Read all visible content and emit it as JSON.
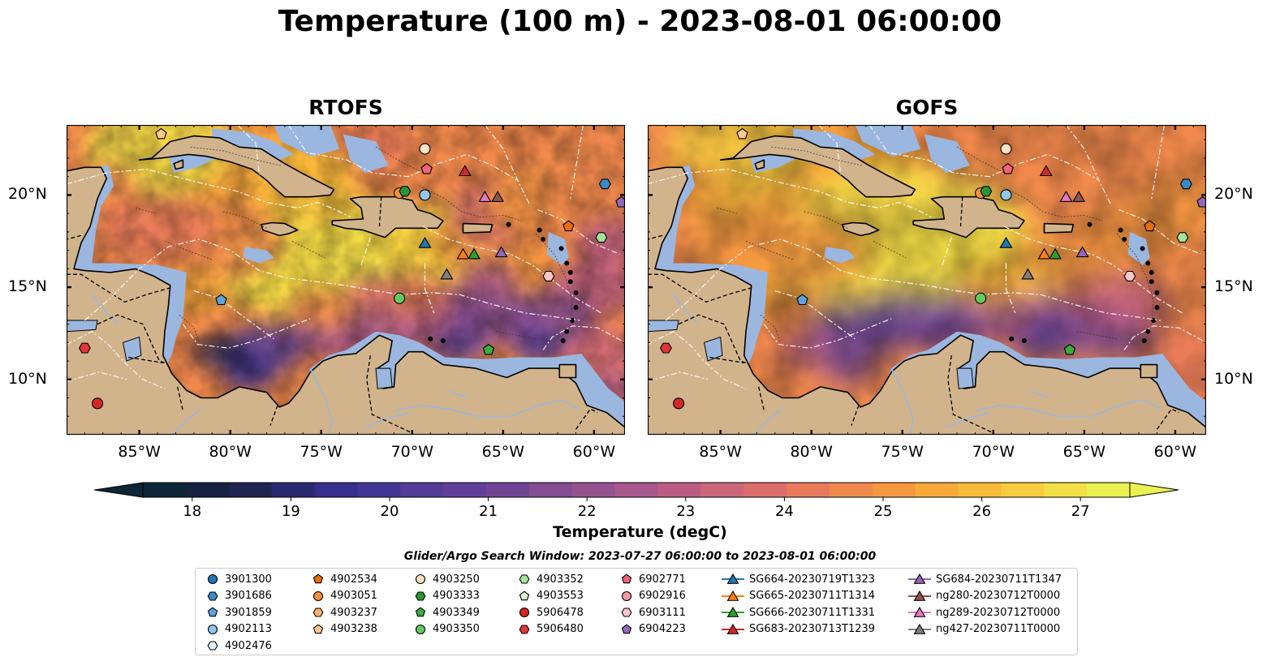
{
  "title": "Temperature (100 m) - 2023-08-01 06:00:00",
  "panels": [
    {
      "title": "RTOFS",
      "style": "rtofs"
    },
    {
      "title": "GOFS",
      "style": "gofs"
    }
  ],
  "axes": {
    "lon_ticks": [
      "85°W",
      "80°W",
      "75°W",
      "70°W",
      "65°W",
      "60°W"
    ],
    "lon_values": [
      -85,
      -80,
      -75,
      -70,
      -65,
      -60
    ],
    "lat_ticks": [
      "20°N",
      "15°N",
      "10°N"
    ],
    "lat_values": [
      20,
      15,
      10
    ],
    "lon_range": [
      -89,
      -58.3
    ],
    "lat_range": [
      7,
      23.8
    ]
  },
  "colorbar": {
    "label": "Temperature (degC)",
    "ticks": [
      "18",
      "19",
      "20",
      "21",
      "22",
      "23",
      "24",
      "25",
      "26",
      "27"
    ],
    "tick_values": [
      18,
      19,
      20,
      21,
      22,
      23,
      24,
      25,
      26,
      27
    ],
    "range": [
      17.5,
      27.5
    ],
    "colors": [
      "#0d2636",
      "#16213f",
      "#1e2350",
      "#2a2a6e",
      "#362f8c",
      "#433596",
      "#523c98",
      "#613f98",
      "#714596",
      "#834c93",
      "#955290",
      "#a8588a",
      "#bb5d83",
      "#cc6679",
      "#db6e6c",
      "#e97a5c",
      "#f1894c",
      "#f5983f",
      "#f8a93a",
      "#f9bb3a",
      "#f7cd3f",
      "#f2df47",
      "#ebf151"
    ]
  },
  "legend": {
    "title": "Glider/Argo Search Window: 2023-07-27 06:00:00 to 2023-08-01 06:00:00",
    "items": [
      {
        "label": "3901300",
        "marker": "circle",
        "color": "#1f77b4"
      },
      {
        "label": "3901686",
        "marker": "hexagon",
        "color": "#3a8ac8"
      },
      {
        "label": "3901859",
        "marker": "pentagon",
        "color": "#5ea3dc"
      },
      {
        "label": "4902113",
        "marker": "circle",
        "color": "#92c5ea"
      },
      {
        "label": "4902476",
        "marker": "hexagon",
        "color": "#e3f1fb"
      },
      {
        "label": "4902534",
        "marker": "pentagon",
        "color": "#e86d0b"
      },
      {
        "label": "4903051",
        "marker": "circle",
        "color": "#f7903a"
      },
      {
        "label": "4903237",
        "marker": "hexagon",
        "color": "#fbb26a"
      },
      {
        "label": "4903238",
        "marker": "pentagon",
        "color": "#fdc993"
      },
      {
        "label": "4903250",
        "marker": "circle",
        "color": "#fde1c4"
      },
      {
        "label": "4903333",
        "marker": "hexagon",
        "color": "#2a9531"
      },
      {
        "label": "4903349",
        "marker": "pentagon",
        "color": "#3bab3e"
      },
      {
        "label": "4903350",
        "marker": "circle",
        "color": "#67c862"
      },
      {
        "label": "4903352",
        "marker": "hexagon",
        "color": "#a5e29a"
      },
      {
        "label": "4903553",
        "marker": "pentagon",
        "color": "#d7f4cf"
      },
      {
        "label": "5906478",
        "marker": "circle",
        "color": "#d62728"
      },
      {
        "label": "5906480",
        "marker": "hexagon",
        "color": "#e0363d"
      },
      {
        "label": "6902771",
        "marker": "pentagon",
        "color": "#f06478"
      },
      {
        "label": "6902916",
        "marker": "circle",
        "color": "#f79a9e"
      },
      {
        "label": "6903111",
        "marker": "hexagon",
        "color": "#fbc6c8"
      },
      {
        "label": "6904223",
        "marker": "pentagon",
        "color": "#9467bd"
      },
      {
        "label": "SG664-20230719T1323",
        "marker": "triangle",
        "color": "#1f77b4"
      },
      {
        "label": "SG665-20230711T1314",
        "marker": "triangle",
        "color": "#ff7f0e"
      },
      {
        "label": "SG666-20230711T1331",
        "marker": "triangle",
        "color": "#2ca02c"
      },
      {
        "label": "SG683-20230713T1239",
        "marker": "triangle",
        "color": "#d62728"
      },
      {
        "label": "SG684-20230711T1347",
        "marker": "triangle",
        "color": "#9467bd"
      },
      {
        "label": "ng280-20230712T0000",
        "marker": "triangle",
        "color": "#8c564b"
      },
      {
        "label": "ng289-20230712T0000",
        "marker": "triangle",
        "color": "#e377c2"
      },
      {
        "label": "ng427-20230711T0000",
        "marker": "triangle",
        "color": "#7f7f7f"
      }
    ]
  },
  "observations": [
    {
      "id": "3901686",
      "lon": -59.4,
      "lat": 20.6
    },
    {
      "id": "3901859",
      "lon": -80.5,
      "lat": 14.3
    },
    {
      "id": "4902113",
      "lon": -69.3,
      "lat": 20.0
    },
    {
      "id": "4902534",
      "lon": -61.4,
      "lat": 18.3
    },
    {
      "id": "4903051",
      "lon": -70.7,
      "lat": 20.1
    },
    {
      "id": "4903238",
      "lon": -83.8,
      "lat": 23.3
    },
    {
      "id": "4903250",
      "lon": -69.3,
      "lat": 22.5
    },
    {
      "id": "4903333",
      "lon": -70.4,
      "lat": 20.2
    },
    {
      "id": "4903349",
      "lon": -65.8,
      "lat": 11.6
    },
    {
      "id": "4903350",
      "lon": -70.7,
      "lat": 14.4
    },
    {
      "id": "4903352",
      "lon": -59.6,
      "lat": 17.7
    },
    {
      "id": "5906478",
      "lon": -87.3,
      "lat": 8.7
    },
    {
      "id": "5906480",
      "lon": -88.0,
      "lat": 11.7
    },
    {
      "id": "6902771",
      "lon": -69.2,
      "lat": 21.4
    },
    {
      "id": "6903111",
      "lon": -62.5,
      "lat": 15.6
    },
    {
      "id": "6904223",
      "lon": -58.5,
      "lat": 19.6
    },
    {
      "id": "SG664-20230719T1323",
      "lon": -69.3,
      "lat": 17.4
    },
    {
      "id": "SG665-20230711T1314",
      "lon": -67.2,
      "lat": 16.8
    },
    {
      "id": "SG666-20230711T1331",
      "lon": -66.6,
      "lat": 16.8
    },
    {
      "id": "SG683-20230713T1239",
      "lon": -67.1,
      "lat": 21.3
    },
    {
      "id": "SG684-20230711T1347",
      "lon": -65.1,
      "lat": 16.9
    },
    {
      "id": "ng280-20230712T0000",
      "lon": -65.3,
      "lat": 19.9
    },
    {
      "id": "ng289-20230712T0000",
      "lon": -66.0,
      "lat": 19.9
    },
    {
      "id": "ng427-20230711T0000",
      "lon": -68.1,
      "lat": 15.7
    }
  ],
  "map_colors": {
    "land": "#d2b48c",
    "shelf": "#9bb7e0",
    "coast": "#000000"
  }
}
